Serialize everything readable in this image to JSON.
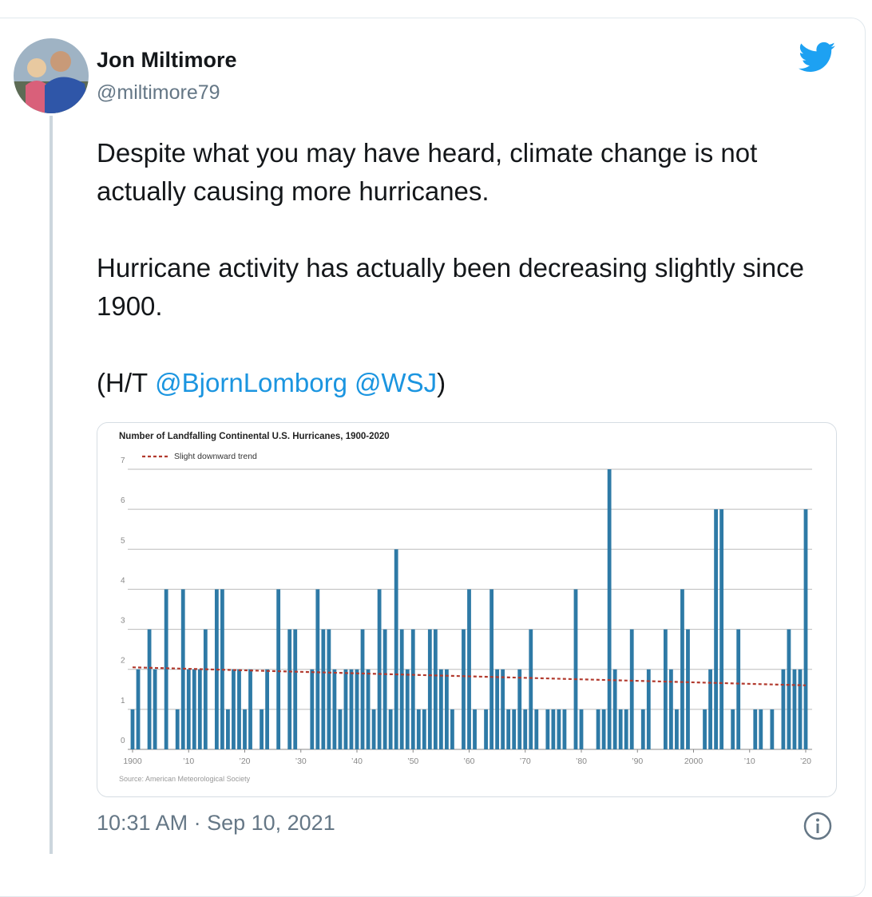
{
  "tweet": {
    "name": "Jon Miltimore",
    "handle": "@miltimore79",
    "paragraphs": [
      "Despite what you may have heard, climate change is not actually causing more hurricanes.",
      "Hurricane activity has actually been decreasing slightly since 1900."
    ],
    "hat_tip": {
      "prefix": "(H/T",
      "mentions": [
        "@BjornLomborg",
        "@WSJ"
      ],
      "suffix": ")"
    },
    "timestamp": "10:31 AM · Sep 10, 2021"
  },
  "chart_data": {
    "type": "bar",
    "title": "Number of Landfalling Continental U.S. Hurricanes, 1900-2020",
    "source": "Source: American Meteorological Society",
    "color": "#2e7aa6",
    "x": [
      1900,
      1901,
      1902,
      1903,
      1904,
      1905,
      1906,
      1907,
      1908,
      1909,
      1910,
      1911,
      1912,
      1913,
      1914,
      1915,
      1916,
      1917,
      1918,
      1919,
      1920,
      1921,
      1922,
      1923,
      1924,
      1925,
      1926,
      1927,
      1928,
      1929,
      1930,
      1931,
      1932,
      1933,
      1934,
      1935,
      1936,
      1937,
      1938,
      1939,
      1940,
      1941,
      1942,
      1943,
      1944,
      1945,
      1946,
      1947,
      1948,
      1949,
      1950,
      1951,
      1952,
      1953,
      1954,
      1955,
      1956,
      1957,
      1958,
      1959,
      1960,
      1961,
      1962,
      1963,
      1964,
      1965,
      1966,
      1967,
      1968,
      1969,
      1970,
      1971,
      1972,
      1973,
      1974,
      1975,
      1976,
      1977,
      1978,
      1979,
      1980,
      1981,
      1982,
      1983,
      1984,
      1985,
      1986,
      1987,
      1988,
      1989,
      1990,
      1991,
      1992,
      1993,
      1994,
      1995,
      1996,
      1997,
      1998,
      1999,
      2000,
      2001,
      2002,
      2003,
      2004,
      2005,
      2006,
      2007,
      2008,
      2009,
      2010,
      2011,
      2012,
      2013,
      2014,
      2015,
      2016,
      2017,
      2018,
      2019,
      2020
    ],
    "values": [
      1,
      2,
      0,
      3,
      2,
      0,
      4,
      0,
      1,
      4,
      2,
      2,
      2,
      3,
      0,
      4,
      4,
      1,
      2,
      2,
      1,
      2,
      0,
      1,
      2,
      0,
      4,
      0,
      3,
      3,
      0,
      0,
      2,
      4,
      3,
      3,
      2,
      1,
      2,
      2,
      2,
      3,
      2,
      1,
      4,
      3,
      1,
      5,
      3,
      2,
      3,
      1,
      1,
      3,
      3,
      2,
      2,
      1,
      0,
      3,
      4,
      1,
      0,
      1,
      4,
      2,
      2,
      1,
      1,
      2,
      1,
      3,
      1,
      0,
      1,
      1,
      1,
      1,
      0,
      4,
      1,
      0,
      0,
      1,
      1,
      7,
      2,
      1,
      1,
      3,
      0,
      1,
      2,
      0,
      0,
      3,
      2,
      1,
      4,
      3,
      0,
      0,
      1,
      2,
      6,
      6,
      0,
      1,
      3,
      0,
      0,
      1,
      1,
      0,
      1,
      0,
      2,
      3,
      2,
      2,
      6
    ],
    "trend": {
      "name": "Slight downward trend",
      "color": "#b23a2e",
      "x": [
        1900,
        2020
      ],
      "values": [
        2.05,
        1.6
      ]
    },
    "xlim": [
      1900,
      2020
    ],
    "xticks": [
      {
        "value": 1900,
        "label": "1900"
      },
      {
        "value": 1910,
        "label": "’10"
      },
      {
        "value": 1920,
        "label": "’20"
      },
      {
        "value": 1930,
        "label": "’30"
      },
      {
        "value": 1940,
        "label": "’40"
      },
      {
        "value": 1950,
        "label": "’50"
      },
      {
        "value": 1960,
        "label": "’60"
      },
      {
        "value": 1970,
        "label": "’70"
      },
      {
        "value": 1980,
        "label": "’80"
      },
      {
        "value": 1990,
        "label": "’90"
      },
      {
        "value": 2000,
        "label": "2000"
      },
      {
        "value": 2010,
        "label": "’10"
      },
      {
        "value": 2020,
        "label": "’20"
      }
    ],
    "ylim": [
      0,
      7
    ],
    "yticks": [
      0,
      1,
      2,
      3,
      4,
      5,
      6,
      7
    ],
    "grid": true
  }
}
